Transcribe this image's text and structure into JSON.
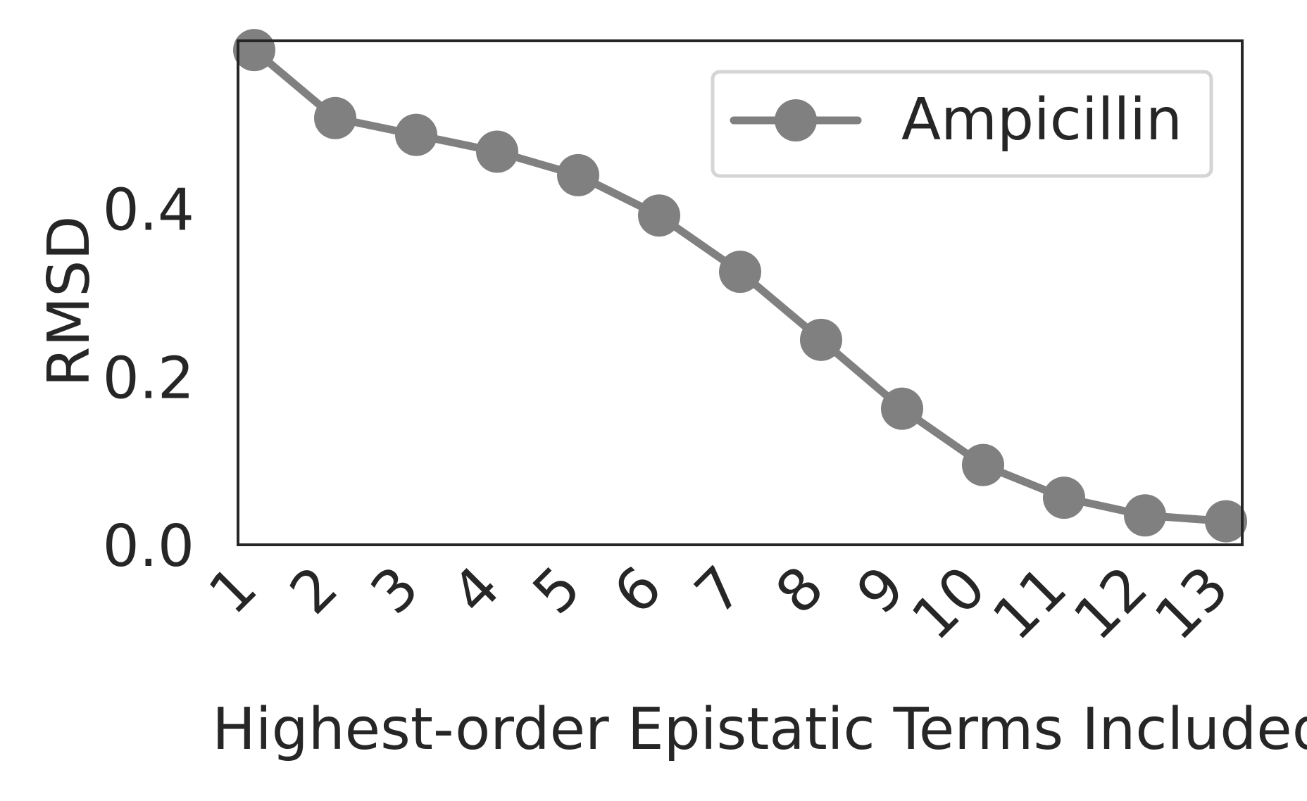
{
  "chart_data": {
    "type": "line",
    "title": "",
    "xlabel": "Highest-order Epistatic Terms Included",
    "ylabel": "RMSD",
    "x": [
      1,
      2,
      3,
      4,
      5,
      6,
      7,
      8,
      9,
      10,
      11,
      12,
      13
    ],
    "x_tick_labels": [
      "1",
      "2",
      "3",
      "4",
      "5",
      "6",
      "7",
      "8",
      "9",
      "10",
      "11",
      "12",
      "13"
    ],
    "y_ticks": [
      0.0,
      0.2,
      0.4
    ],
    "y_tick_labels": [
      "0.0",
      "0.2",
      "0.4"
    ],
    "ylim": [
      0.0,
      0.6
    ],
    "grid": false,
    "legend_position": "top-right",
    "series": [
      {
        "name": "Ampicillin",
        "color": "#808080",
        "marker": "circle",
        "values": [
          0.589,
          0.508,
          0.488,
          0.468,
          0.44,
          0.392,
          0.325,
          0.244,
          0.162,
          0.095,
          0.056,
          0.035,
          0.028
        ]
      }
    ]
  }
}
